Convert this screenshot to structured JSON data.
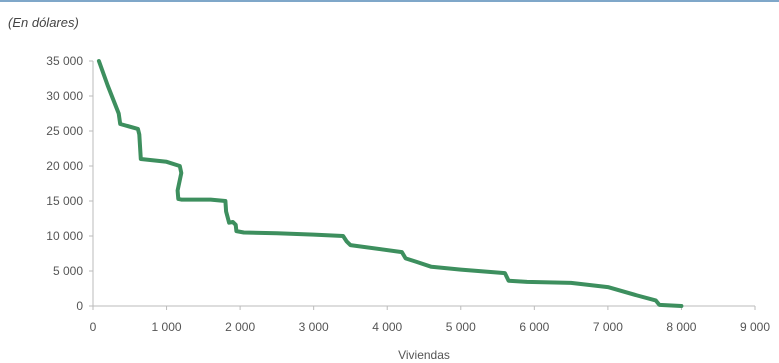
{
  "chart_data": {
    "type": "line",
    "unit_label": "(En dólares)",
    "xlabel": "Viviendas",
    "ylabel": "",
    "xlim": [
      0,
      9000
    ],
    "ylim": [
      0,
      35000
    ],
    "x_ticks": [
      0,
      1000,
      2000,
      3000,
      4000,
      5000,
      6000,
      7000,
      8000,
      9000
    ],
    "x_tick_labels": [
      "0",
      "1 000",
      "2 000",
      "3 000",
      "4 000",
      "5 000",
      "6 000",
      "7 000",
      "8 000",
      "9 000"
    ],
    "y_ticks": [
      0,
      5000,
      10000,
      15000,
      20000,
      25000,
      30000,
      35000
    ],
    "y_tick_labels": [
      "0",
      "5 000",
      "10 000",
      "15 000",
      "20 000",
      "25 000",
      "30 000",
      "35 000"
    ],
    "grid": false,
    "line_color": "#3d8f5e",
    "series": [
      {
        "x": [
          80,
          200,
          350,
          370,
          610,
          630,
          650,
          1000,
          1180,
          1200,
          1150,
          1160,
          1200,
          1300,
          1600,
          1800,
          1810,
          1850,
          1900,
          1940,
          1950,
          2050,
          2500,
          3000,
          3400,
          3450,
          3500,
          4200,
          4250,
          4400,
          4600,
          5000,
          5600,
          5650,
          5900,
          6500,
          7000,
          7400,
          7650,
          7700,
          8000
        ],
        "y": [
          35000,
          31500,
          27500,
          26000,
          25300,
          24500,
          21000,
          20600,
          20000,
          19000,
          16500,
          15300,
          15200,
          15200,
          15200,
          15000,
          13500,
          11900,
          12000,
          11600,
          10700,
          10500,
          10400,
          10200,
          10000,
          9200,
          8700,
          7700,
          6800,
          6300,
          5600,
          5200,
          4700,
          3600,
          3450,
          3300,
          2700,
          1500,
          800,
          150,
          0
        ]
      }
    ]
  }
}
